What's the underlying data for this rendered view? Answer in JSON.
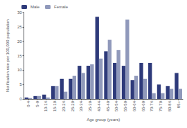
{
  "chart_data": {
    "type": "bar",
    "categories": [
      "0-4",
      "5-9",
      "10-14",
      "15-19",
      "20-24",
      "25-29",
      "30-34",
      "35-39",
      "40-44",
      "45-49",
      "50-54",
      "55-59",
      "60-64",
      "65-69",
      "70-74",
      "75-79",
      "80-84",
      "85+"
    ],
    "series": [
      {
        "name": "Male",
        "color": "#2e3a7a",
        "values": [
          0.5,
          1.0,
          1.5,
          4.5,
          7.0,
          7.0,
          11.5,
          11.5,
          28.5,
          16.5,
          12.5,
          11.5,
          6.5,
          12.5,
          12.5,
          5.0,
          4.5,
          9.0
        ]
      },
      {
        "name": "Female",
        "color": "#9099bb",
        "values": [
          0.3,
          1.0,
          0.5,
          4.5,
          2.5,
          8.0,
          9.0,
          12.0,
          14.0,
          20.5,
          17.0,
          27.5,
          8.0,
          7.0,
          2.0,
          2.0,
          3.5,
          3.5
        ]
      }
    ],
    "xlabel": "Age group (years)",
    "ylabel": "Notification rate per 100,000 population",
    "ylim": [
      0,
      30
    ],
    "yticks": [
      0,
      5,
      10,
      15,
      20,
      25,
      30
    ],
    "grid": false,
    "legend": "upper left"
  }
}
